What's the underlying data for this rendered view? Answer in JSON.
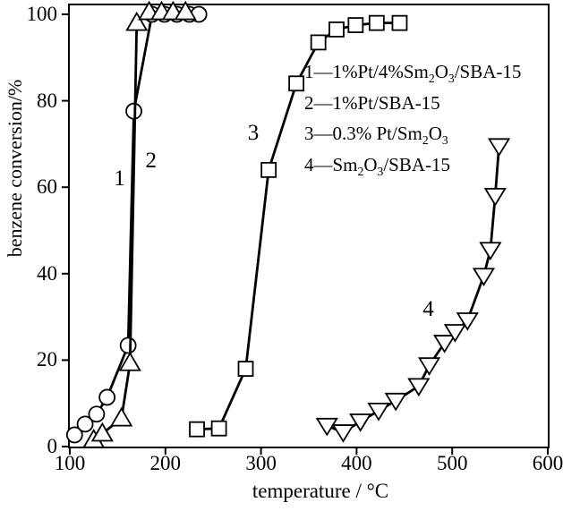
{
  "figure": {
    "background": "#ffffff",
    "foreground": "#000000",
    "marker_fill": "#ffffff"
  },
  "chart_data": {
    "type": "scatter",
    "title": "",
    "xlabel": "temperature / °C",
    "ylabel": "benzene conversion/%",
    "xlim": [
      100,
      600
    ],
    "ylim": [
      0,
      100
    ],
    "x_ticks": [
      100,
      200,
      300,
      400,
      500,
      600
    ],
    "y_ticks": [
      0,
      20,
      40,
      60,
      80,
      100
    ],
    "grid": false,
    "legend_position": "inside plot, upper middle-right",
    "legend_items": [
      "1—1%Pt/4%Sm₂O₃/SBA-15",
      "2—1%Pt/SBA-15",
      "3—0.3% Pt/Sm₂O₃",
      "4—Sm₂O₃/SBA-15"
    ],
    "series": [
      {
        "id": 1,
        "name": "1%Pt/4%Sm₂O₃/SBA-15",
        "marker": "circle",
        "points": [
          [
            105,
            2.7
          ],
          [
            116,
            5.2
          ],
          [
            128,
            7.5
          ],
          [
            139,
            11.4
          ],
          [
            161,
            23.4
          ],
          [
            167,
            77.6
          ],
          [
            186,
            100
          ],
          [
            199,
            100
          ],
          [
            212,
            100
          ],
          [
            225,
            100
          ],
          [
            235,
            100
          ]
        ]
      },
      {
        "id": 2,
        "name": "1%Pt/SBA-15",
        "marker": "triangle-up",
        "points": [
          [
            125,
            1.5
          ],
          [
            134,
            3
          ],
          [
            154,
            6.5
          ],
          [
            163,
            19.3
          ],
          [
            170,
            98
          ],
          [
            183,
            100.5
          ],
          [
            196,
            100.5
          ],
          [
            208,
            100.5
          ],
          [
            221,
            100.5
          ]
        ]
      },
      {
        "id": 3,
        "name": "0.3% Pt/Sm₂O₃",
        "marker": "square",
        "points": [
          [
            233,
            4
          ],
          [
            256,
            4.2
          ],
          [
            284,
            18
          ],
          [
            308,
            64
          ],
          [
            337,
            84
          ],
          [
            360,
            93.5
          ],
          [
            379,
            96.5
          ],
          [
            399,
            97.5
          ],
          [
            421,
            98
          ],
          [
            445,
            98
          ]
        ]
      },
      {
        "id": 4,
        "name": "Sm₂O₃/SBA-15",
        "marker": "triangle-down",
        "points": [
          [
            369,
            4.8
          ],
          [
            386,
            3.3
          ],
          [
            404,
            5.8
          ],
          [
            423,
            8.3
          ],
          [
            441,
            10.6
          ],
          [
            465,
            14
          ],
          [
            476,
            18.8
          ],
          [
            492,
            24
          ],
          [
            503,
            26.5
          ],
          [
            516,
            29.2
          ],
          [
            533,
            39.5
          ],
          [
            540,
            45.5
          ],
          [
            545,
            58
          ],
          [
            549,
            69.5
          ]
        ]
      }
    ],
    "curve_labels": [
      {
        "text": "1",
        "x": 152,
        "y": 62
      },
      {
        "text": "2",
        "x": 185,
        "y": 66
      },
      {
        "text": "3",
        "x": 292,
        "y": 72.5
      },
      {
        "text": "4",
        "x": 475,
        "y": 31.7
      }
    ]
  }
}
